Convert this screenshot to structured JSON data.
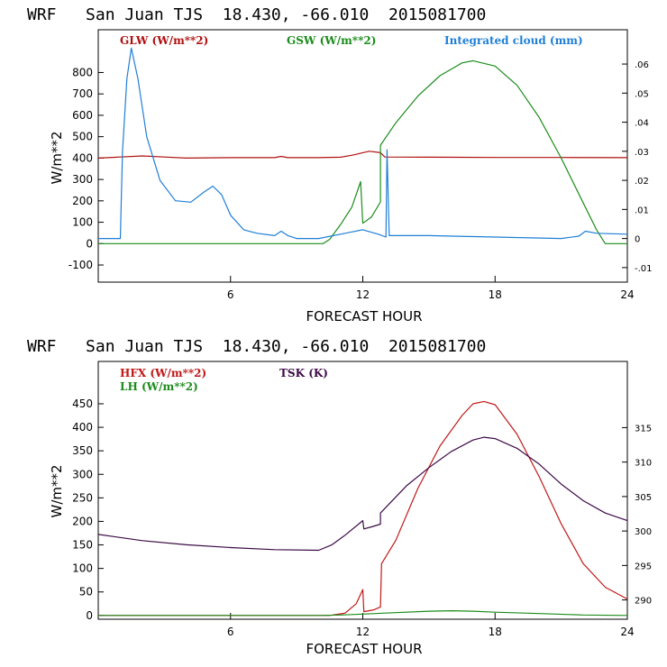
{
  "chart_data": [
    {
      "type": "line",
      "title": "WRF   San Juan TJS  18.430, -66.010  2015081700",
      "xlabel": "FORECAST HOUR",
      "ylabel": "W/m**2",
      "xlim": [
        0,
        24
      ],
      "ylim": [
        -180,
        1000
      ],
      "y2lim": [
        -0.015,
        0.0718
      ],
      "xticks": [
        "6",
        "12",
        "18",
        "24"
      ],
      "yticks": [
        "-100",
        "0",
        "100",
        "200",
        "300",
        "400",
        "500",
        "600",
        "700",
        "800"
      ],
      "y2ticks": [
        "-.01",
        "0",
        ".01",
        ".02",
        ".03",
        ".04",
        ".05",
        ".06"
      ],
      "series": [
        {
          "name": "GLW (W/m**2)",
          "color": "#b01010",
          "axis": "left",
          "points": [
            [
              0,
              400
            ],
            [
              1,
              405
            ],
            [
              2,
              410
            ],
            [
              3,
              405
            ],
            [
              4,
              400
            ],
            [
              6,
              402
            ],
            [
              8,
              402
            ],
            [
              8.3,
              408
            ],
            [
              8.6,
              402
            ],
            [
              10,
              402
            ],
            [
              11,
              404
            ],
            [
              11.6,
              415
            ],
            [
              12,
              425
            ],
            [
              12.3,
              432
            ],
            [
              12.8,
              425
            ],
            [
              13,
              405
            ],
            [
              15,
              404
            ],
            [
              18,
              403
            ],
            [
              21,
              403
            ],
            [
              24,
              402
            ]
          ]
        },
        {
          "name": "GSW (W/m**2)",
          "color": "#1c8c1c",
          "axis": "left",
          "points": [
            [
              0,
              0
            ],
            [
              10.2,
              0
            ],
            [
              10.5,
              20
            ],
            [
              11,
              90
            ],
            [
              11.5,
              170
            ],
            [
              11.9,
              290
            ],
            [
              12,
              95
            ],
            [
              12.4,
              125
            ],
            [
              12.8,
              195
            ],
            [
              12.8,
              460
            ],
            [
              13.5,
              565
            ],
            [
              14.5,
              690
            ],
            [
              15.5,
              785
            ],
            [
              16.5,
              845
            ],
            [
              17,
              855
            ],
            [
              18,
              830
            ],
            [
              19,
              740
            ],
            [
              20,
              590
            ],
            [
              21,
              400
            ],
            [
              22,
              190
            ],
            [
              22.6,
              65
            ],
            [
              23,
              0
            ],
            [
              24,
              0
            ]
          ]
        },
        {
          "name": "Integrated cloud (mm)",
          "color": "#1f7fd6",
          "axis": "right",
          "points": [
            [
              0,
              0
            ],
            [
              1,
              0
            ],
            [
              1.1,
              0.03
            ],
            [
              1.3,
              0.055
            ],
            [
              1.5,
              0.0655
            ],
            [
              1.8,
              0.055
            ],
            [
              2.2,
              0.035
            ],
            [
              2.8,
              0.02
            ],
            [
              3.5,
              0.013
            ],
            [
              4.2,
              0.0125
            ],
            [
              4.8,
              0.016
            ],
            [
              5.2,
              0.018
            ],
            [
              5.6,
              0.015
            ],
            [
              6,
              0.008
            ],
            [
              6.6,
              0.003
            ],
            [
              7.2,
              0.0018
            ],
            [
              8,
              0.001
            ],
            [
              8.3,
              0.0025
            ],
            [
              8.6,
              0.001
            ],
            [
              9,
              0
            ],
            [
              10,
              0
            ],
            [
              11,
              0.0015
            ],
            [
              12,
              0.003
            ],
            [
              12.7,
              0.0015
            ],
            [
              13.05,
              0.0005
            ],
            [
              13.1,
              0.0305
            ],
            [
              13.2,
              0.001
            ],
            [
              15,
              0.001
            ],
            [
              18,
              0.0005
            ],
            [
              21,
              0
            ],
            [
              21.8,
              0.0008
            ],
            [
              22.1,
              0.0025
            ],
            [
              22.6,
              0.0018
            ],
            [
              24,
              0.0015
            ]
          ]
        }
      ]
    },
    {
      "type": "line",
      "title": "WRF   San Juan TJS  18.430, -66.010  2015081700",
      "xlabel": "FORECAST HOUR",
      "ylabel": "W/m**2",
      "xlim": [
        0,
        24
      ],
      "ylim": [
        -8,
        540
      ],
      "y2lim": [
        287.2,
        324.6
      ],
      "xticks": [
        "6",
        "12",
        "18",
        "24"
      ],
      "yticks": [
        "0",
        "50",
        "100",
        "150",
        "200",
        "250",
        "300",
        "350",
        "400",
        "450"
      ],
      "y2ticks": [
        "290",
        "295",
        "300",
        "305",
        "310",
        "315"
      ],
      "series": [
        {
          "name": "HFX (W/m**2)",
          "color": "#c01818",
          "axis": "left",
          "points": [
            [
              0,
              0
            ],
            [
              10.5,
              0
            ],
            [
              11.2,
              5
            ],
            [
              11.7,
              25
            ],
            [
              12,
              55
            ],
            [
              12.05,
              8
            ],
            [
              12.5,
              12
            ],
            [
              12.8,
              18
            ],
            [
              12.85,
              110
            ],
            [
              13.5,
              160
            ],
            [
              14.5,
              270
            ],
            [
              15.5,
              360
            ],
            [
              16.5,
              425
            ],
            [
              17,
              450
            ],
            [
              17.5,
              455
            ],
            [
              18,
              448
            ],
            [
              19,
              385
            ],
            [
              20,
              295
            ],
            [
              21,
              195
            ],
            [
              22,
              110
            ],
            [
              23,
              60
            ],
            [
              24,
              35
            ]
          ]
        },
        {
          "name": "LH (W/m**2)",
          "color": "#1c8c1c",
          "axis": "left",
          "points": [
            [
              0,
              0
            ],
            [
              10,
              0
            ],
            [
              11,
              1
            ],
            [
              12,
              3
            ],
            [
              13,
              5
            ],
            [
              15,
              9
            ],
            [
              16,
              10
            ],
            [
              17,
              9
            ],
            [
              18,
              7
            ],
            [
              20,
              4
            ],
            [
              22,
              1
            ],
            [
              24,
              0
            ]
          ]
        },
        {
          "name": "TSK (K)",
          "color": "#3c0a46",
          "axis": "right",
          "points": [
            [
              0,
              299.5
            ],
            [
              2,
              298.6
            ],
            [
              4,
              298
            ],
            [
              6,
              297.6
            ],
            [
              8,
              297.3
            ],
            [
              10,
              297.2
            ],
            [
              10.6,
              298
            ],
            [
              11.2,
              299.4
            ],
            [
              12,
              301.5
            ],
            [
              12.05,
              300.3
            ],
            [
              12.4,
              300.6
            ],
            [
              12.8,
              301
            ],
            [
              12.8,
              302.6
            ],
            [
              14,
              306.6
            ],
            [
              15,
              309.2
            ],
            [
              16,
              311.5
            ],
            [
              17,
              313.2
            ],
            [
              17.5,
              313.6
            ],
            [
              18,
              313.4
            ],
            [
              19,
              312
            ],
            [
              20,
              309.7
            ],
            [
              21,
              306.8
            ],
            [
              22,
              304.4
            ],
            [
              23,
              302.6
            ],
            [
              24,
              301.5
            ]
          ]
        }
      ]
    }
  ]
}
